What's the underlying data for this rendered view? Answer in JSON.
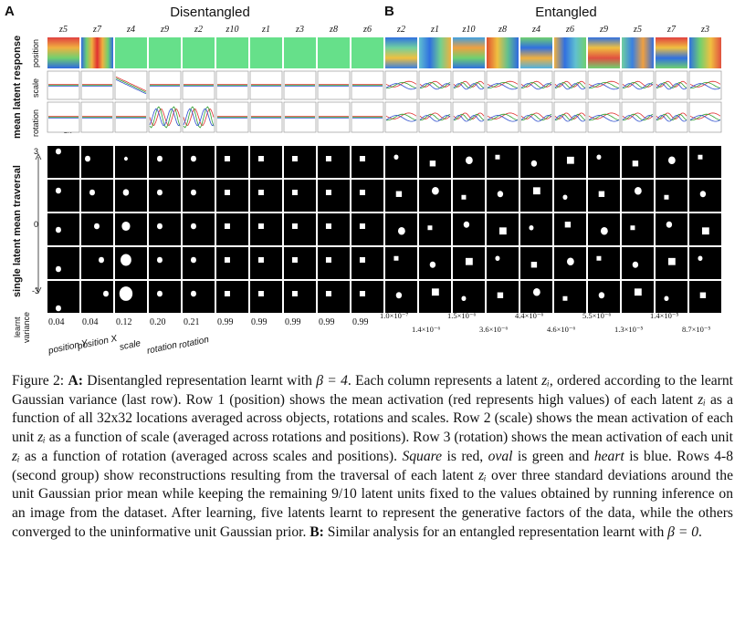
{
  "panel_a": {
    "letter": "A",
    "title": "Disentangled",
    "latents": [
      "z5",
      "z7",
      "z4",
      "z9",
      "z2",
      "z10",
      "z1",
      "z3",
      "z8",
      "z6"
    ],
    "variances": [
      "0.04",
      "0.04",
      "0.12",
      "0.20",
      "0.21",
      "0.99",
      "0.99",
      "0.99",
      "0.99",
      "0.99"
    ]
  },
  "panel_b": {
    "letter": "B",
    "title": "Entangled",
    "latents": [
      "z2",
      "z1",
      "z10",
      "z8",
      "z4",
      "z6",
      "z9",
      "z5",
      "z7",
      "z3"
    ],
    "variances_top": [
      "1.0×10⁻⁷",
      "1.5×10⁻⁶",
      "4.4×10⁻⁶",
      "5.5×10⁻⁶",
      "1.4×10⁻⁵"
    ],
    "variances_bottom": [
      "1.4×10⁻⁶",
      "3.6×10⁻⁶",
      "4.6×10⁻⁶",
      "1.3×10⁻⁵",
      "8.7×10⁻⁵"
    ]
  },
  "row_labels": {
    "mean_latent_response": "mean latent response",
    "position": "position",
    "scale": "scale",
    "rotation": "rotation",
    "traversal": "single latent mean traversal",
    "learnt_variance_1": "learnt",
    "learnt_variance_2": "variance",
    "trav_top": "3",
    "trav_mid": "0",
    "trav_bot": "-3",
    "rot_zero": "0",
    "rot_2pi": "2π"
  },
  "factor_labels": [
    "position Y",
    "position X",
    "scale",
    "rotation",
    "rotation"
  ],
  "caption": {
    "fig_label": "Figure 2:",
    "a_label": "A:",
    "part1": " Disentangled representation learnt with ",
    "beta4": "β = 4",
    "part2": ". Each column represents a latent ",
    "zi1": "zᵢ",
    "part3": ", ordered according to the learnt Gaussian variance (last row). Row 1 (position) shows the mean activation (red represents high values) of each latent ",
    "zi2": "zᵢ",
    "part4": " as a function of all 32x32 locations averaged across objects, rotations and scales. Row 2 (scale) shows the mean activation of each unit ",
    "zi3": "zᵢ",
    "part5": " as a function of scale (averaged across rotations and positions). Row 3 (rotation) shows the mean activation of each unit ",
    "zi4": "zᵢ",
    "part6": " as a function of rotation (averaged across scales and positions). ",
    "square": "Square",
    "part7": " is red, ",
    "oval": "oval",
    "part8": " is green and ",
    "heart": "heart",
    "part9": " is blue. Rows 4-8 (second group) show reconstructions resulting from the traversal of each latent ",
    "zi5": "zᵢ",
    "part10": " over three standard deviations around the unit Gaussian prior mean while keeping the remaining 9/10 latent units fixed to the values obtained by running inference on an image from the dataset. After learning, five latents learnt to represent the generative factors of the data, while the others converged to the uninformative unit Gaussian prior. ",
    "b_label": "B:",
    "part11": " Similar analysis for an entangled representation learnt with ",
    "beta0": "β = 0",
    "part12": "."
  },
  "colors": {
    "square": "#e03030",
    "oval": "#30a030",
    "heart": "#3050d0",
    "flat_latent": "#66e08a"
  }
}
